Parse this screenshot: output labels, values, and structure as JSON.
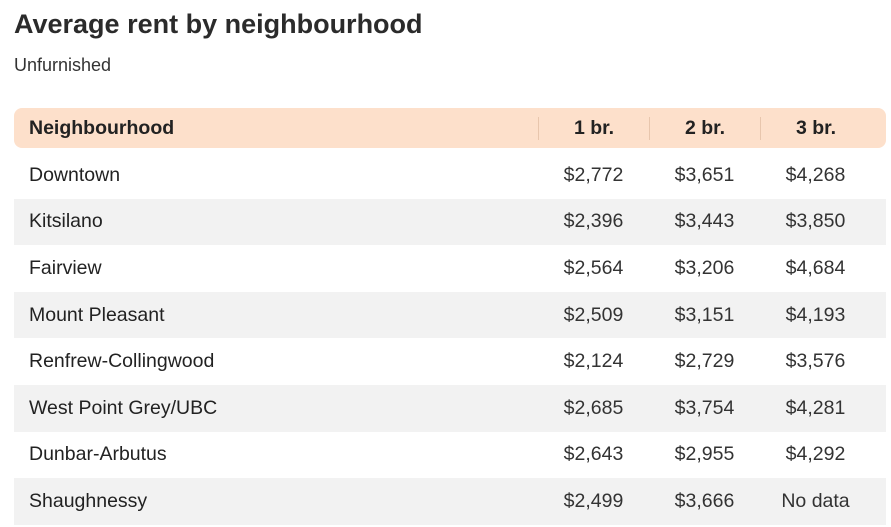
{
  "title": "Average rent by neighbourhood",
  "subtitle": "Unfurnished",
  "chart_data": {
    "type": "table",
    "title": "Average rent by neighbourhood",
    "subtitle": "Unfurnished",
    "columns": [
      "Neighbourhood",
      "1 br.",
      "2 br.",
      "3 br."
    ],
    "rows": [
      [
        "Downtown",
        "$2,772",
        "$3,651",
        "$4,268"
      ],
      [
        "Kitsilano",
        "$2,396",
        "$3,443",
        "$3,850"
      ],
      [
        "Fairview",
        "$2,564",
        "$3,206",
        "$4,684"
      ],
      [
        "Mount Pleasant",
        "$2,509",
        "$3,151",
        "$4,193"
      ],
      [
        "Renfrew-Collingwood",
        "$2,124",
        "$2,729",
        "$3,576"
      ],
      [
        "West Point Grey/UBC",
        "$2,685",
        "$3,754",
        "$4,281"
      ],
      [
        "Dunbar-Arbutus",
        "$2,643",
        "$2,955",
        "$4,292"
      ],
      [
        "Shaughnessy",
        "$2,499",
        "$3,666",
        "No data"
      ]
    ]
  },
  "colors": {
    "header_bg": "#fde0cb",
    "alt_row_bg": "#f2f2f2"
  }
}
